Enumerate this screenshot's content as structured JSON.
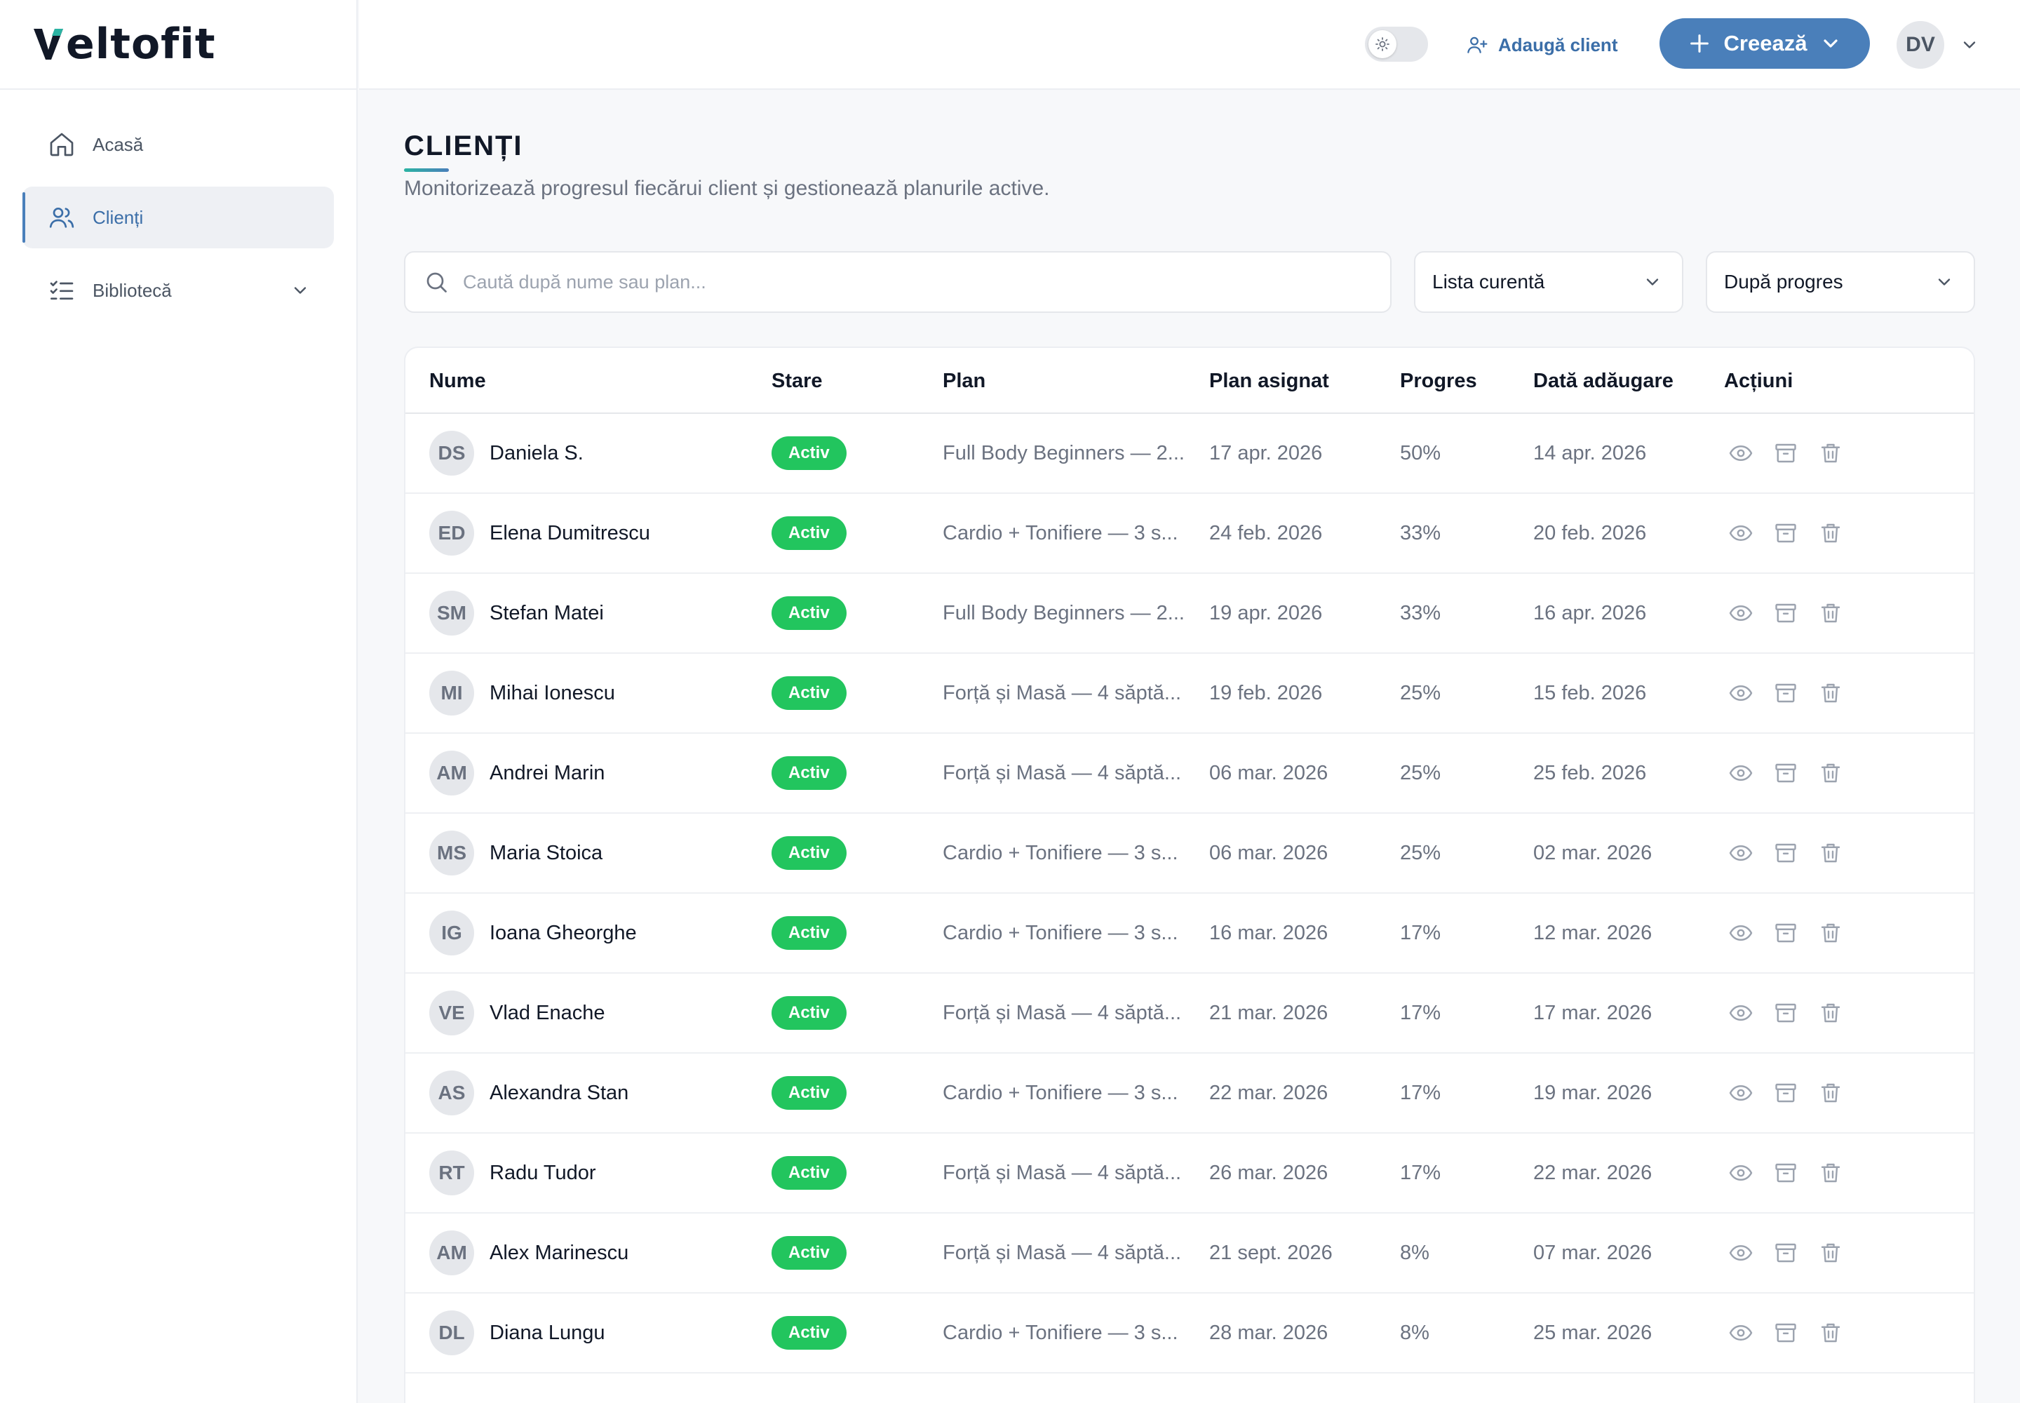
{
  "brand": {
    "logo_text": "eltofit"
  },
  "sidebar": {
    "items": [
      {
        "label": "Acasă",
        "icon": "home-icon"
      },
      {
        "label": "Clienți",
        "icon": "users-icon"
      },
      {
        "label": "Bibliotecă",
        "icon": "list-check-icon"
      }
    ]
  },
  "header": {
    "add_client_label": "Adaugă client",
    "create_label": "Creează",
    "user_initials": "DV"
  },
  "page": {
    "title": "CLIENȚI",
    "subtitle": "Monitorizează progresul fiecărui client și gestionează planurile active."
  },
  "filters": {
    "search_placeholder": "Caută după nume sau plan...",
    "list_value": "Lista curentă",
    "sort_value": "După progres"
  },
  "table": {
    "headers": [
      "Nume",
      "Stare",
      "Plan",
      "Plan asignat",
      "Progres",
      "Dată adăugare",
      "Acțiuni"
    ],
    "rows": [
      {
        "initials": "DS",
        "name": "Daniela S.",
        "status": "Activ",
        "plan": "Full Body Beginners — 2...",
        "assigned": "17 apr. 2026",
        "progress": "50%",
        "added": "14 apr. 2026"
      },
      {
        "initials": "ED",
        "name": "Elena Dumitrescu",
        "status": "Activ",
        "plan": "Cardio + Tonifiere — 3 s...",
        "assigned": "24 feb. 2026",
        "progress": "33%",
        "added": "20 feb. 2026"
      },
      {
        "initials": "SM",
        "name": "Stefan Matei",
        "status": "Activ",
        "plan": "Full Body Beginners — 2...",
        "assigned": "19 apr. 2026",
        "progress": "33%",
        "added": "16 apr. 2026"
      },
      {
        "initials": "MI",
        "name": "Mihai Ionescu",
        "status": "Activ",
        "plan": "Forță și Masă — 4 săptă...",
        "assigned": "19 feb. 2026",
        "progress": "25%",
        "added": "15 feb. 2026"
      },
      {
        "initials": "AM",
        "name": "Andrei Marin",
        "status": "Activ",
        "plan": "Forță și Masă — 4 săptă...",
        "assigned": "06 mar. 2026",
        "progress": "25%",
        "added": "25 feb. 2026"
      },
      {
        "initials": "MS",
        "name": "Maria Stoica",
        "status": "Activ",
        "plan": "Cardio + Tonifiere — 3 s...",
        "assigned": "06 mar. 2026",
        "progress": "25%",
        "added": "02 mar. 2026"
      },
      {
        "initials": "IG",
        "name": "Ioana Gheorghe",
        "status": "Activ",
        "plan": "Cardio + Tonifiere — 3 s...",
        "assigned": "16 mar. 2026",
        "progress": "17%",
        "added": "12 mar. 2026"
      },
      {
        "initials": "VE",
        "name": "Vlad Enache",
        "status": "Activ",
        "plan": "Forță și Masă — 4 săptă...",
        "assigned": "21 mar. 2026",
        "progress": "17%",
        "added": "17 mar. 2026"
      },
      {
        "initials": "AS",
        "name": "Alexandra Stan",
        "status": "Activ",
        "plan": "Cardio + Tonifiere — 3 s...",
        "assigned": "22 mar. 2026",
        "progress": "17%",
        "added": "19 mar. 2026"
      },
      {
        "initials": "RT",
        "name": "Radu Tudor",
        "status": "Activ",
        "plan": "Forță și Masă — 4 săptă...",
        "assigned": "26 mar. 2026",
        "progress": "17%",
        "added": "22 mar. 2026"
      },
      {
        "initials": "AM",
        "name": "Alex Marinescu",
        "status": "Activ",
        "plan": "Forță și Masă — 4 săptă...",
        "assigned": "21 sept. 2026",
        "progress": "8%",
        "added": "07 mar. 2026"
      },
      {
        "initials": "DL",
        "name": "Diana Lungu",
        "status": "Activ",
        "plan": "Cardio + Tonifiere — 3 s...",
        "assigned": "28 mar. 2026",
        "progress": "8%",
        "added": "25 mar. 2026"
      }
    ]
  },
  "colors": {
    "accent": "#4a7fba",
    "status_active": "#22c55e"
  }
}
